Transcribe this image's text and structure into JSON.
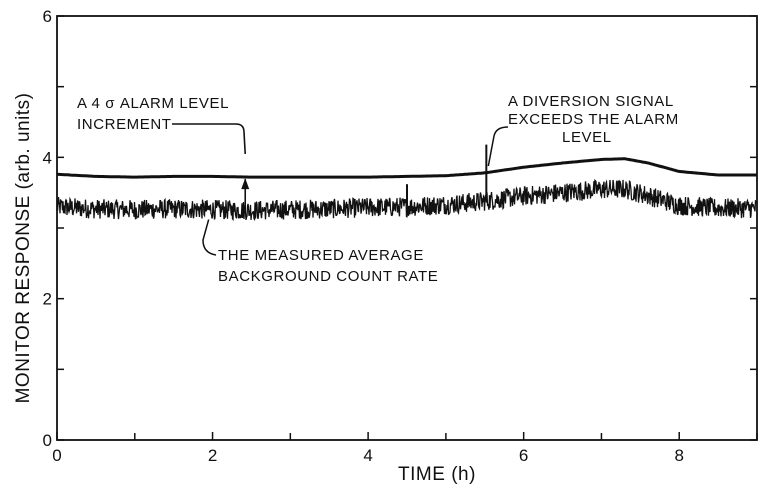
{
  "chart_data": {
    "type": "line",
    "xlabel": "TIME (h)",
    "ylabel": "MONITOR RESPONSE (arb. units)",
    "xlim": [
      0,
      9
    ],
    "ylim": [
      0,
      6
    ],
    "x_ticks": [
      {
        "value": 0,
        "label": "0"
      },
      {
        "value": 2,
        "label": "2"
      },
      {
        "value": 4,
        "label": "4"
      },
      {
        "value": 6,
        "label": "6"
      },
      {
        "value": 8,
        "label": "8"
      }
    ],
    "y_ticks": [
      {
        "value": 0,
        "label": "0"
      },
      {
        "value": 2,
        "label": "2"
      },
      {
        "value": 4,
        "label": "4"
      },
      {
        "value": 6,
        "label": "6"
      }
    ],
    "grid": false,
    "series": [
      {
        "role": "alarm-level",
        "x": [
          0,
          0.5,
          1,
          1.5,
          2,
          2.5,
          3,
          3.5,
          4,
          4.5,
          5,
          5.5,
          6,
          6.5,
          7,
          7.3,
          7.6,
          8,
          8.5,
          9
        ],
        "y": [
          3.76,
          3.73,
          3.72,
          3.73,
          3.73,
          3.72,
          3.72,
          3.72,
          3.72,
          3.73,
          3.74,
          3.78,
          3.86,
          3.92,
          3.97,
          3.98,
          3.92,
          3.8,
          3.75,
          3.75
        ]
      },
      {
        "role": "measured-response",
        "noise_amplitude": 0.14,
        "x": [
          0,
          0.5,
          1,
          1.5,
          2,
          2.5,
          3,
          3.5,
          4,
          4.5,
          5,
          5.5,
          6,
          6.5,
          7,
          7.3,
          7.6,
          8,
          8.5,
          9
        ],
        "y": [
          3.3,
          3.27,
          3.26,
          3.27,
          3.26,
          3.25,
          3.26,
          3.27,
          3.29,
          3.3,
          3.33,
          3.38,
          3.45,
          3.5,
          3.55,
          3.55,
          3.46,
          3.32,
          3.28,
          3.28
        ]
      }
    ],
    "spikes": [
      {
        "x": 4.5,
        "y": 3.62
      },
      {
        "x": 5.52,
        "y": 4.18
      }
    ],
    "annotations": [
      {
        "name": "alarm-increment",
        "lines": [
          "A 4 σ ALARM LEVEL",
          "INCREMENT"
        ],
        "target": {
          "x": 2.42,
          "y_low": 3.26,
          "y_high": 3.72
        }
      },
      {
        "name": "diversion",
        "lines": [
          "A DIVERSION SIGNAL",
          "EXCEEDS THE ALARM",
          "LEVEL"
        ],
        "target": {
          "x": 5.52,
          "y": 3.95
        }
      },
      {
        "name": "background",
        "lines": [
          "THE MEASURED AVERAGE",
          "BACKGROUND COUNT RATE"
        ],
        "target": {
          "x": 1.95,
          "y": 3.12
        }
      }
    ]
  }
}
